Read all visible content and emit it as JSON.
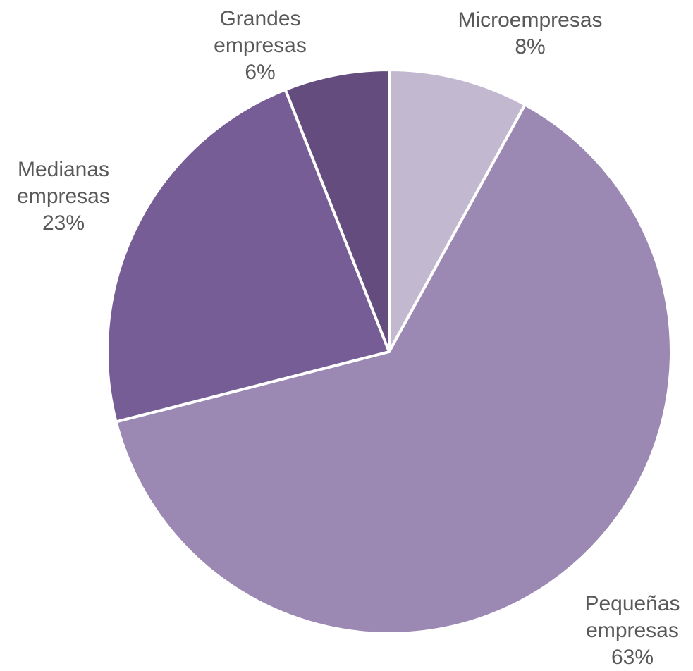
{
  "chart_data": {
    "type": "pie",
    "start_angle_deg": 0,
    "direction": "clockwise",
    "slices": [
      {
        "label": [
          "Microempresas"
        ],
        "percent_label": "8%",
        "value": 8,
        "color": "#c2b8d0"
      },
      {
        "label": [
          "Pequeñas",
          "empresas"
        ],
        "percent_label": "63%",
        "value": 63,
        "color": "#9b89b3"
      },
      {
        "label": [
          "Medianas",
          "empresas"
        ],
        "percent_label": "23%",
        "value": 23,
        "color": "#765d96"
      },
      {
        "label": [
          "Grandes",
          "empresas"
        ],
        "percent_label": "6%",
        "value": 6,
        "color": "#644d7e"
      }
    ],
    "label_color": "#595959",
    "separator_color": "#ffffff"
  }
}
